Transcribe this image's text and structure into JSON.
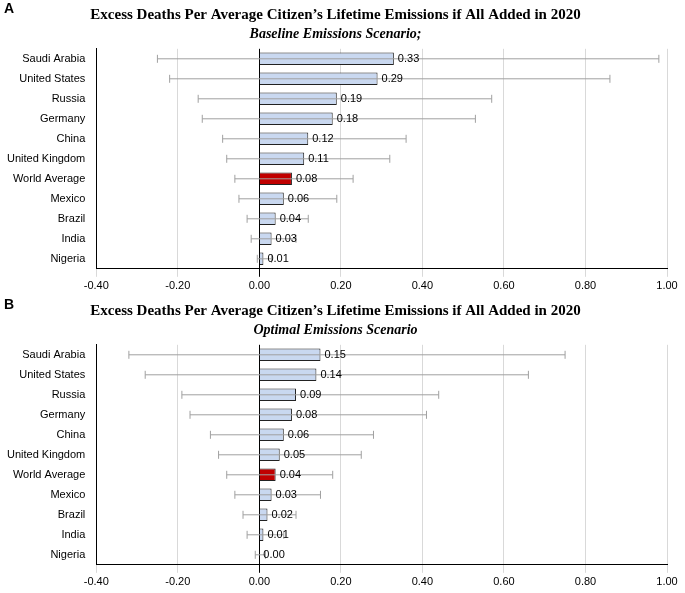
{
  "chart_data": [
    {
      "type": "bar",
      "orientation": "horizontal",
      "annotations": [
        "A"
      ],
      "title": "Excess Deaths Per Average Citizen’s Lifetime Emissions if All Added in 2020",
      "subtitle": "Baseline Emissions Scenario;",
      "categories": [
        "Saudi Arabia",
        "United States",
        "Russia",
        "Germany",
        "China",
        "United Kingdom",
        "World Average",
        "Mexico",
        "Brazil",
        "India",
        "Nigeria"
      ],
      "values": [
        0.33,
        0.29,
        0.19,
        0.18,
        0.12,
        0.11,
        0.08,
        0.06,
        0.04,
        0.03,
        0.01
      ],
      "value_labels": [
        "0.33",
        "0.29",
        "0.19",
        "0.18",
        "0.12",
        "0.11",
        "0.08",
        "0.06",
        "0.04",
        "0.03",
        "0.01"
      ],
      "error_low": [
        -0.25,
        -0.22,
        -0.15,
        -0.14,
        -0.09,
        -0.08,
        -0.06,
        -0.05,
        -0.03,
        -0.02,
        -0.005
      ],
      "error_high": [
        0.98,
        0.86,
        0.57,
        0.53,
        0.36,
        0.32,
        0.23,
        0.19,
        0.12,
        0.09,
        0.03
      ],
      "colors": [
        "#c9d8f0",
        "#c9d8f0",
        "#c9d8f0",
        "#c9d8f0",
        "#c9d8f0",
        "#c9d8f0",
        "#c00000",
        "#c9d8f0",
        "#c9d8f0",
        "#c9d8f0",
        "#c9d8f0"
      ],
      "xlim": [
        -0.4,
        1.0
      ],
      "xticks": [
        {
          "value": -0.4,
          "label": "-0.40"
        },
        {
          "value": -0.2,
          "label": "-0.20"
        },
        {
          "value": 0,
          "label": "0.00"
        },
        {
          "value": 0.2,
          "label": "0.20"
        },
        {
          "value": 0.4,
          "label": "0.40"
        },
        {
          "value": 0.6,
          "label": "0.60"
        },
        {
          "value": 0.8,
          "label": "0.80"
        },
        {
          "value": 1.0,
          "label": "1.00"
        }
      ],
      "grid": true,
      "data_labels": true
    },
    {
      "type": "bar",
      "orientation": "horizontal",
      "annotations": [
        "B"
      ],
      "title": "Excess Deaths Per Average Citizen’s Lifetime Emissions if All Added in 2020",
      "subtitle": "Optimal Emissions Scenario",
      "categories": [
        "Saudi Arabia",
        "United States",
        "Russia",
        "Germany",
        "China",
        "United Kingdom",
        "World Average",
        "Mexico",
        "Brazil",
        "India",
        "Nigeria"
      ],
      "values": [
        0.15,
        0.14,
        0.09,
        0.08,
        0.06,
        0.05,
        0.04,
        0.03,
        0.02,
        0.01,
        0.0
      ],
      "value_labels": [
        "0.15",
        "0.14",
        "0.09",
        "0.08",
        "0.06",
        "0.05",
        "0.04",
        "0.03",
        "0.02",
        "0.01",
        "0.00"
      ],
      "error_low": [
        -0.32,
        -0.28,
        -0.19,
        -0.17,
        -0.12,
        -0.1,
        -0.08,
        -0.06,
        -0.04,
        -0.03,
        -0.01
      ],
      "error_high": [
        0.75,
        0.66,
        0.44,
        0.41,
        0.28,
        0.25,
        0.18,
        0.15,
        0.09,
        0.06,
        0.015
      ],
      "colors": [
        "#c9d8f0",
        "#c9d8f0",
        "#c9d8f0",
        "#c9d8f0",
        "#c9d8f0",
        "#c9d8f0",
        "#c00000",
        "#c9d8f0",
        "#c9d8f0",
        "#c9d8f0",
        "#c9d8f0"
      ],
      "xlim": [
        -0.4,
        1.0
      ],
      "xticks": [
        {
          "value": -0.4,
          "label": "-0.40"
        },
        {
          "value": -0.2,
          "label": "-0.20"
        },
        {
          "value": 0,
          "label": "0.00"
        },
        {
          "value": 0.2,
          "label": "0.20"
        },
        {
          "value": 0.4,
          "label": "0.40"
        },
        {
          "value": 0.6,
          "label": "0.60"
        },
        {
          "value": 0.8,
          "label": "0.80"
        },
        {
          "value": 1.0,
          "label": "1.00"
        }
      ],
      "grid": true,
      "data_labels": true
    }
  ]
}
